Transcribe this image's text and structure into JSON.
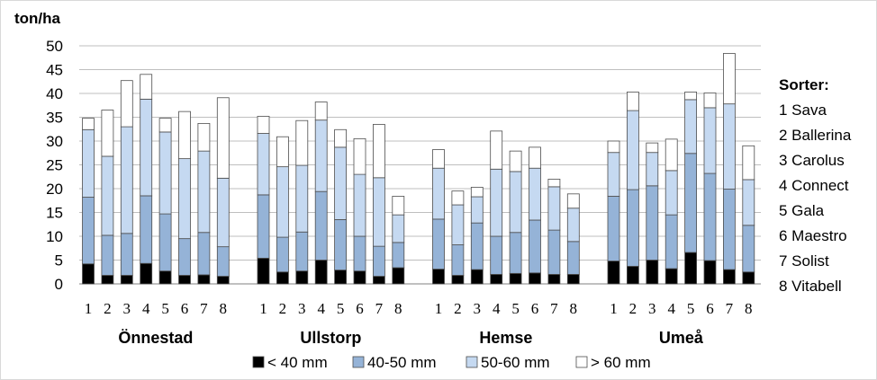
{
  "chart_data": {
    "type": "bar",
    "stacked": true,
    "ylabel": "ton/ha",
    "ylim": [
      0,
      50
    ],
    "yticks": [
      0,
      5,
      10,
      15,
      20,
      25,
      30,
      35,
      40,
      45,
      50
    ],
    "grid": true,
    "legend_position": "bottom",
    "colors": {
      "< 40 mm": "#000000",
      "40-50 mm": "#95b3d7",
      "50-60 mm": "#c5d9f1",
      "> 60 mm": "#ffffff",
      "bar_edge": "#4d4d4d",
      "grid": "#bfbfbf"
    },
    "series_names": [
      "< 40 mm",
      "40-50 mm",
      "50-60 mm",
      "> 60 mm"
    ],
    "groups": [
      {
        "name": "Önnestad",
        "categories": [
          "1",
          "2",
          "3",
          "4",
          "5",
          "6",
          "7",
          "8"
        ],
        "series": [
          {
            "name": "< 40 mm",
            "values": [
              4.2,
              1.8,
              1.8,
              4.3,
              2.7,
              1.8,
              1.9,
              1.6
            ]
          },
          {
            "name": "40-50 mm",
            "values": [
              14.0,
              8.4,
              8.8,
              14.2,
              12.0,
              7.7,
              8.9,
              6.2
            ]
          },
          {
            "name": "50-60 mm",
            "values": [
              14.2,
              16.6,
              22.4,
              20.3,
              17.2,
              16.8,
              17.1,
              14.4
            ]
          },
          {
            "name": "> 60 mm",
            "values": [
              2.4,
              9.7,
              9.7,
              5.2,
              2.9,
              9.9,
              5.8,
              16.9
            ]
          }
        ]
      },
      {
        "name": "Ullstorp",
        "categories": [
          "1",
          "2",
          "3",
          "4",
          "5",
          "6",
          "7",
          "8"
        ],
        "series": [
          {
            "name": "< 40 mm",
            "values": [
              5.4,
              2.5,
              2.7,
              5.0,
              2.9,
              2.7,
              1.6,
              3.4
            ]
          },
          {
            "name": "40-50 mm",
            "values": [
              13.3,
              7.3,
              8.2,
              14.4,
              10.6,
              7.3,
              6.3,
              5.3
            ]
          },
          {
            "name": "50-60 mm",
            "values": [
              12.9,
              14.8,
              14.0,
              15.0,
              15.2,
              13.0,
              14.4,
              5.8
            ]
          },
          {
            "name": "> 60 mm",
            "values": [
              3.6,
              6.3,
              9.4,
              3.8,
              3.7,
              7.5,
              11.2,
              3.9
            ]
          }
        ]
      },
      {
        "name": "Hemse",
        "categories": [
          "1",
          "2",
          "3",
          "4",
          "5",
          "6",
          "7",
          "8"
        ],
        "series": [
          {
            "name": "< 40 mm",
            "values": [
              3.1,
              1.8,
              3.0,
              2.0,
              2.2,
              2.3,
              2.0,
              2.0
            ]
          },
          {
            "name": "40-50 mm",
            "values": [
              10.5,
              6.4,
              9.8,
              8.0,
              8.6,
              11.1,
              9.3,
              6.9
            ]
          },
          {
            "name": "50-60 mm",
            "values": [
              10.7,
              8.4,
              5.5,
              14.1,
              12.8,
              10.9,
              9.1,
              7.0
            ]
          },
          {
            "name": "> 60 mm",
            "values": [
              3.9,
              2.9,
              2.0,
              8.0,
              4.3,
              4.4,
              1.6,
              3.0
            ]
          }
        ]
      },
      {
        "name": "Umeå",
        "categories": [
          "1",
          "2",
          "3",
          "4",
          "5",
          "6",
          "7",
          "8"
        ],
        "series": [
          {
            "name": "< 40 mm",
            "values": [
              4.8,
              3.7,
              5.0,
              3.2,
              6.6,
              4.9,
              3.0,
              2.5
            ]
          },
          {
            "name": "40-50 mm",
            "values": [
              13.6,
              16.1,
              15.6,
              11.3,
              20.8,
              18.3,
              16.9,
              9.8
            ]
          },
          {
            "name": "50-60 mm",
            "values": [
              9.2,
              16.6,
              7.0,
              9.3,
              11.3,
              13.8,
              17.9,
              9.6
            ]
          },
          {
            "name": "> 60 mm",
            "values": [
              2.4,
              3.9,
              2.0,
              6.6,
              1.6,
              3.1,
              10.6,
              7.1
            ]
          }
        ]
      }
    ],
    "sorter": {
      "title": "Sorter:",
      "items": [
        "1 Sava",
        "2 Ballerina",
        "3 Carolus",
        "4 Connect",
        "5 Gala",
        "6 Maestro",
        "7 Solist",
        "8 Vitabell"
      ]
    }
  }
}
